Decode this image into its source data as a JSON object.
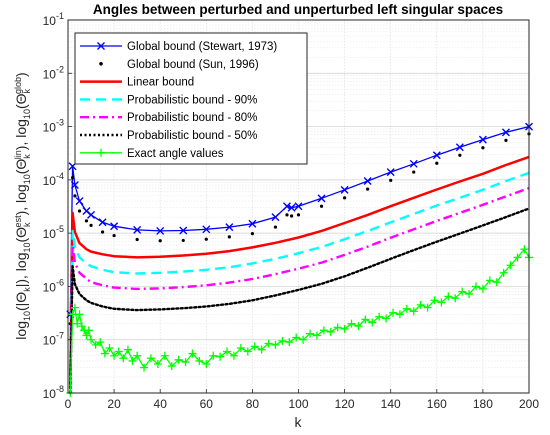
{
  "chart_data": {
    "type": "line",
    "title": "Angles between perturbed and unperturbed left singular spaces",
    "xlabel": "k",
    "ylabel": "log10(|Θk|), log10(Θk^est), log10(Θk^lin), log10(Θk^glob)",
    "ylabel_parts": {
      "p1": "log",
      "p1sub": "10",
      "p1open": "(|Θ",
      "p1k": "k",
      "p1close": "|),",
      "p2": " log",
      "p2sub": "10",
      "p2open": "(Θ",
      "p2k": "k",
      "p2sup": "est",
      "p2close": "),",
      "p3": " log",
      "p3sub": "10",
      "p3open": "(Θ",
      "p3k": "k",
      "p3sup": "lin",
      "p3close": "),",
      "p4": " log",
      "p4sub": "10",
      "p4open": "(Θ",
      "p4k": "k",
      "p4sup": "glob",
      "p4close": ")"
    },
    "xlim": [
      0,
      200
    ],
    "ylim": [
      1e-08,
      0.1
    ],
    "yscale": "log",
    "grid": true,
    "minor_grid": true,
    "legend_position": "top-left",
    "x_ticks": [
      0,
      20,
      40,
      60,
      80,
      100,
      120,
      140,
      160,
      180,
      200
    ],
    "x_tick_labels": [
      "0",
      "20",
      "40",
      "60",
      "80",
      "100",
      "120",
      "140",
      "160",
      "180",
      "200"
    ],
    "y_ticks": [
      1e-08,
      1e-07,
      1e-06,
      1e-05,
      0.0001,
      0.001,
      0.01,
      0.1
    ],
    "y_tick_labels": [
      {
        "base": "10",
        "exp": "-8"
      },
      {
        "base": "10",
        "exp": "-7"
      },
      {
        "base": "10",
        "exp": "-6"
      },
      {
        "base": "10",
        "exp": "-5"
      },
      {
        "base": "10",
        "exp": "-4"
      },
      {
        "base": "10",
        "exp": "-3"
      },
      {
        "base": "10",
        "exp": "-2"
      },
      {
        "base": "10",
        "exp": "-1"
      }
    ],
    "series": [
      {
        "name": "Global bound (Stewart, 1973)",
        "color": "#0000ff",
        "style": "solid",
        "marker": "x",
        "x": [
          1,
          2,
          3,
          5,
          8,
          10,
          15,
          20,
          30,
          40,
          50,
          60,
          70,
          80,
          90,
          95,
          97,
          100,
          110,
          120,
          130,
          140,
          150,
          160,
          170,
          180,
          190,
          200
        ],
        "y": [
          3e-07,
          0.00018,
          8e-05,
          4e-05,
          2.6e-05,
          2.2e-05,
          1.6e-05,
          1.35e-05,
          1.15e-05,
          1.1e-05,
          1.12e-05,
          1.18e-05,
          1.3e-05,
          1.5e-05,
          2e-05,
          3.2e-05,
          3e-05,
          3.2e-05,
          4.5e-05,
          6.5e-05,
          9.5e-05,
          0.00014,
          0.0002,
          0.00029,
          0.00041,
          0.00057,
          0.00078,
          0.001
        ]
      },
      {
        "name": "Global bound (Sun, 1996)",
        "color": "#000000",
        "style": "dots",
        "marker": "point",
        "x": [
          1,
          2,
          3,
          5,
          8,
          10,
          15,
          20,
          30,
          40,
          50,
          60,
          70,
          80,
          90,
          95,
          97,
          100,
          110,
          120,
          130,
          140,
          150,
          160,
          170,
          180,
          190,
          200
        ],
        "y": [
          2e-07,
          0.00011,
          5e-05,
          2.6e-05,
          1.7e-05,
          1.4e-05,
          1.05e-05,
          9e-06,
          7.6e-06,
          7.2e-06,
          7.3e-06,
          7.7e-06,
          8.5e-06,
          9.8e-06,
          1.3e-05,
          2.2e-05,
          2.1e-05,
          2.2e-05,
          3.2e-05,
          4.6e-05,
          6.7e-05,
          9.8e-05,
          0.00014,
          0.000205,
          0.00029,
          0.0004,
          0.00055,
          0.00073
        ]
      },
      {
        "name": "Linear bound",
        "color": "#ff0000",
        "style": "solid",
        "x": [
          1,
          2,
          3,
          5,
          8,
          10,
          15,
          20,
          30,
          40,
          50,
          60,
          70,
          80,
          90,
          100,
          110,
          120,
          130,
          140,
          150,
          160,
          170,
          180,
          190,
          200
        ],
        "y": [
          2e-08,
          2.4e-05,
          1.05e-05,
          6.5e-06,
          5e-06,
          4.5e-06,
          4e-06,
          3.7e-06,
          3.5e-06,
          3.6e-06,
          3.8e-06,
          4.1e-06,
          4.6e-06,
          5.4e-06,
          6.6e-06,
          8.3e-06,
          1.1e-05,
          1.55e-05,
          2.2e-05,
          3.2e-05,
          4.6e-05,
          6.6e-05,
          9.3e-05,
          0.00013,
          0.00019,
          0.00027
        ]
      },
      {
        "name": "Probabilistic bound - 90%",
        "color": "#00ffff",
        "style": "dash",
        "x": [
          1,
          2,
          3,
          5,
          8,
          10,
          15,
          20,
          30,
          40,
          50,
          60,
          70,
          80,
          90,
          100,
          110,
          120,
          130,
          140,
          150,
          160,
          170,
          180,
          190,
          200
        ],
        "y": [
          1.5e-08,
          1.1e-05,
          5.5e-06,
          3.5e-06,
          2.7e-06,
          2.4e-06,
          2.05e-06,
          1.85e-06,
          1.75e-06,
          1.8e-06,
          1.9e-06,
          2.05e-06,
          2.3e-06,
          2.7e-06,
          3.3e-06,
          4.2e-06,
          5.5e-06,
          7.7e-06,
          1.1e-05,
          1.6e-05,
          2.3e-05,
          3.3e-05,
          4.6e-05,
          6.5e-05,
          9.5e-05,
          0.000135
        ]
      },
      {
        "name": "Probabilistic bound - 80%",
        "color": "#ff00ff",
        "style": "dashdot",
        "x": [
          1,
          2,
          3,
          5,
          8,
          10,
          15,
          20,
          30,
          40,
          50,
          60,
          70,
          80,
          90,
          100,
          110,
          120,
          130,
          140,
          150,
          160,
          170,
          180,
          190,
          200
        ],
        "y": [
          1.2e-08,
          6e-06,
          2.8e-06,
          1.8e-06,
          1.4e-06,
          1.2e-06,
          1.05e-06,
          9.5e-07,
          9e-07,
          9.2e-07,
          9.7e-07,
          1.05e-06,
          1.18e-06,
          1.38e-06,
          1.7e-06,
          2.15e-06,
          2.8e-06,
          3.9e-06,
          5.6e-06,
          8.2e-06,
          1.18e-05,
          1.7e-05,
          2.4e-05,
          3.4e-05,
          4.9e-05,
          7e-05
        ]
      },
      {
        "name": "Probabilistic bound - 50%",
        "color": "#000000",
        "style": "dotted",
        "x": [
          1,
          2,
          3,
          5,
          8,
          10,
          15,
          20,
          30,
          40,
          50,
          60,
          70,
          80,
          90,
          100,
          110,
          120,
          130,
          140,
          150,
          160,
          170,
          180,
          190,
          200
        ],
        "y": [
          1e-08,
          2.4e-06,
          1.1e-06,
          7.2e-07,
          5.5e-07,
          4.9e-07,
          4.2e-07,
          3.8e-07,
          3.6e-07,
          3.7e-07,
          3.9e-07,
          4.2e-07,
          4.7e-07,
          5.5e-07,
          6.8e-07,
          8.6e-07,
          1.12e-06,
          1.55e-06,
          2.25e-06,
          3.3e-06,
          4.8e-06,
          6.9e-06,
          9.8e-06,
          1.4e-05,
          2e-05,
          2.9e-05
        ]
      },
      {
        "name": "Exact angle values",
        "color": "#00ff00",
        "style": "solid",
        "marker": "+",
        "x": [
          1,
          2,
          3,
          4,
          5,
          6,
          7,
          8,
          9,
          10,
          12,
          14,
          16,
          18,
          20,
          22,
          24,
          26,
          28,
          30,
          33,
          36,
          39,
          42,
          45,
          48,
          51,
          54,
          57,
          60,
          63,
          66,
          69,
          72,
          75,
          78,
          81,
          84,
          87,
          90,
          93,
          96,
          99,
          102,
          105,
          108,
          111,
          114,
          117,
          120,
          123,
          126,
          129,
          132,
          135,
          138,
          141,
          144,
          147,
          150,
          153,
          156,
          159,
          162,
          165,
          168,
          171,
          174,
          177,
          180,
          183,
          186,
          189,
          192,
          195,
          198,
          200
        ],
        "y": [
          1e-08,
          3e-07,
          4e-07,
          2e-07,
          3e-07,
          1.8e-07,
          1.5e-07,
          1.2e-07,
          1.5e-07,
          1e-07,
          8e-08,
          9e-08,
          5.5e-08,
          7e-08,
          5e-08,
          6e-08,
          4.5e-08,
          6.5e-08,
          4e-08,
          5e-08,
          3e-08,
          4.5e-08,
          3.5e-08,
          5e-08,
          3.2e-08,
          4.2e-08,
          3.8e-08,
          5.5e-08,
          4e-08,
          3.5e-08,
          5e-08,
          4.8e-08,
          6e-08,
          5e-08,
          7e-08,
          6e-08,
          7.5e-08,
          6.5e-08,
          8.5e-08,
          8e-08,
          9.5e-08,
          9e-08,
          1.1e-07,
          1e-07,
          1.3e-07,
          1.2e-07,
          1.5e-07,
          1.4e-07,
          1.7e-07,
          1.6e-07,
          2e-07,
          1.8e-07,
          2.4e-07,
          2.1e-07,
          2.7e-07,
          2.5e-07,
          3.2e-07,
          3e-07,
          3.8e-07,
          3.4e-07,
          4.5e-07,
          4e-07,
          5.5e-07,
          5e-07,
          6.5e-07,
          6e-07,
          8e-07,
          7.2e-07,
          1e-06,
          9e-07,
          1.3e-06,
          1.2e-06,
          1.8e-06,
          2.5e-06,
          3.5e-06,
          5e-06,
          3.5e-06
        ]
      }
    ]
  }
}
